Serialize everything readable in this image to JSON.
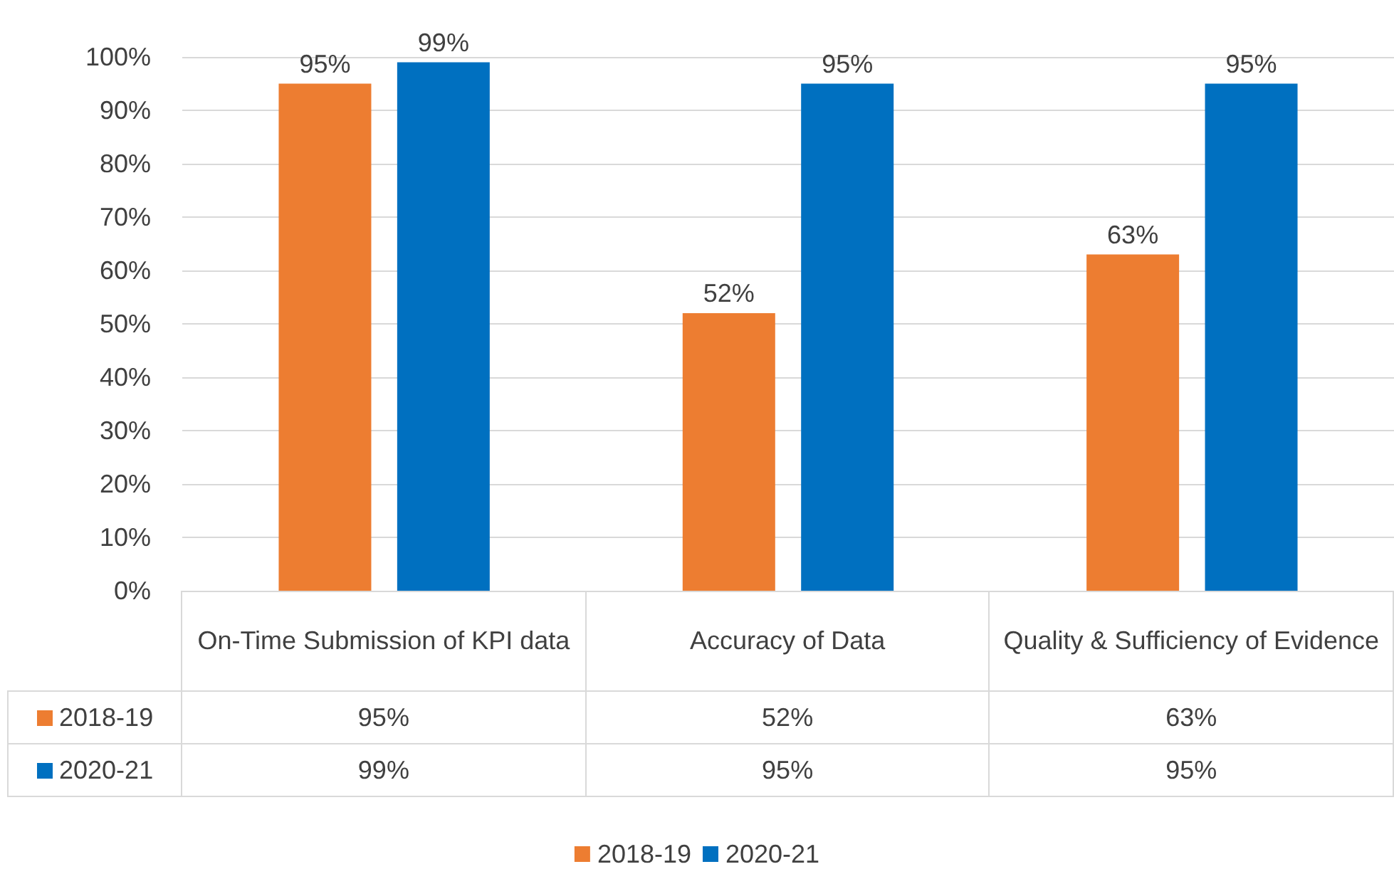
{
  "chart_data": {
    "type": "bar",
    "categories": [
      "On-Time Submission of KPI data",
      "Accuracy of Data",
      "Quality & Sufficiency of Evidence"
    ],
    "series": [
      {
        "name": "2018-19",
        "color": "#ed7d31",
        "values": [
          95,
          52,
          63
        ],
        "value_labels": [
          "95%",
          "52%",
          "63%"
        ]
      },
      {
        "name": "2020-21",
        "color": "#0070c0",
        "values": [
          99,
          95,
          95
        ],
        "value_labels": [
          "99%",
          "95%",
          "95%"
        ]
      }
    ],
    "ylim": [
      0,
      100
    ],
    "yticks": [
      {
        "value": 0,
        "label": "0%"
      },
      {
        "value": 10,
        "label": "10%"
      },
      {
        "value": 20,
        "label": "20%"
      },
      {
        "value": 30,
        "label": "30%"
      },
      {
        "value": 40,
        "label": "40%"
      },
      {
        "value": 50,
        "label": "50%"
      },
      {
        "value": 60,
        "label": "60%"
      },
      {
        "value": 70,
        "label": "70%"
      },
      {
        "value": 80,
        "label": "80%"
      },
      {
        "value": 90,
        "label": "90%"
      },
      {
        "value": 100,
        "label": "100%"
      }
    ],
    "grid": "y",
    "legend": "bottom"
  }
}
